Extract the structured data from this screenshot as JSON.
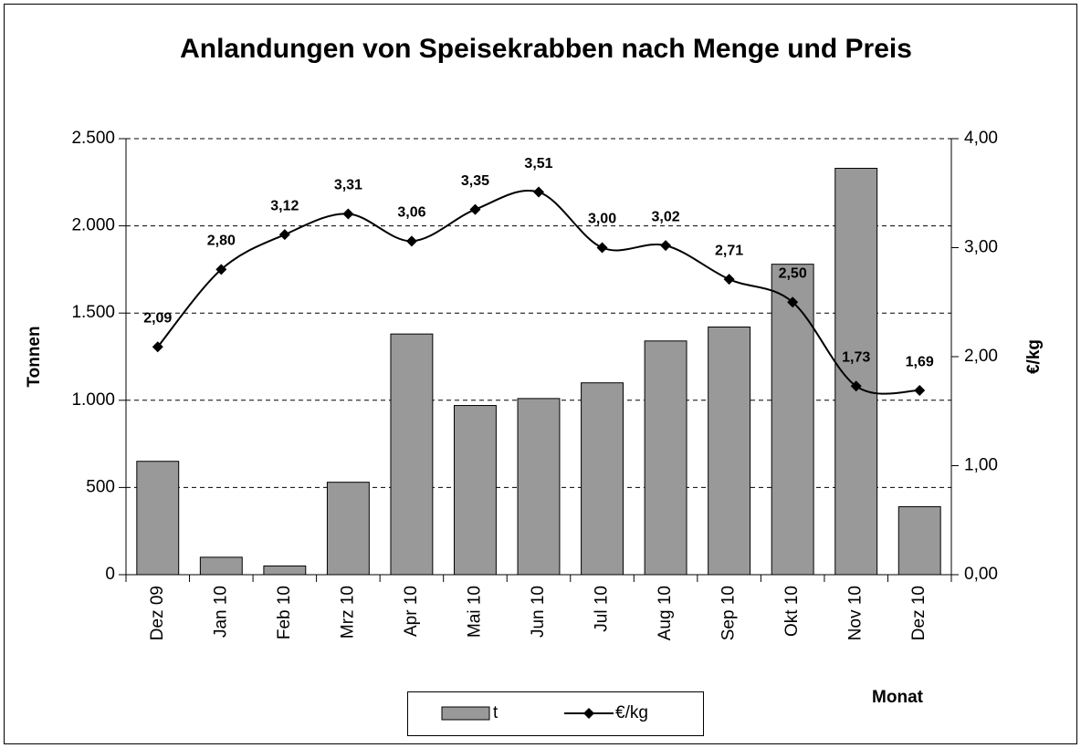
{
  "chart_data": {
    "type": "bar",
    "title": "Anlandungen von Speisekrabben nach Menge und Preis",
    "xlabel": "Monat",
    "ylabel": "Tonnen",
    "y2label": "€/kg",
    "categories": [
      "Dez 09",
      "Jan 10",
      "Feb 10",
      "Mrz 10",
      "Apr 10",
      "Mai 10",
      "Jun 10",
      "Jul 10",
      "Aug 10",
      "Sep 10",
      "Okt 10",
      "Nov 10",
      "Dez 10"
    ],
    "series": [
      {
        "name": "t",
        "type": "bar",
        "color": "#999999",
        "values": [
          650,
          100,
          50,
          530,
          1380,
          970,
          1010,
          1100,
          1340,
          1420,
          1780,
          2330,
          390
        ]
      },
      {
        "name": "€/kg",
        "type": "line",
        "axis": "y2",
        "color": "#000000",
        "values": [
          2.09,
          2.8,
          3.12,
          3.31,
          3.06,
          3.35,
          3.51,
          3.0,
          3.02,
          2.71,
          2.5,
          1.73,
          1.69
        ],
        "value_labels": [
          "2,09",
          "2,80",
          "3,12",
          "3,31",
          "3,06",
          "3,35",
          "3,51",
          "3,00",
          "3,02",
          "2,71",
          "2,50",
          "1,73",
          "1,69"
        ]
      }
    ],
    "ylim": [
      0,
      2500
    ],
    "yticks": [
      0,
      500,
      {
        "value": 1000,
        "label": "1.000"
      },
      {
        "value": 1500,
        "label": "1.500"
      },
      {
        "value": 2000,
        "label": "2.000"
      },
      {
        "value": 2500,
        "label": "2.500"
      }
    ],
    "y2lim": [
      0,
      4
    ],
    "y2ticks": [
      {
        "value": 0,
        "label": "0,00"
      },
      {
        "value": 1,
        "label": "1,00"
      },
      {
        "value": 2,
        "label": "2,00"
      },
      {
        "value": 3,
        "label": "3,00"
      },
      {
        "value": 4,
        "label": "4,00"
      }
    ],
    "grid": true
  }
}
